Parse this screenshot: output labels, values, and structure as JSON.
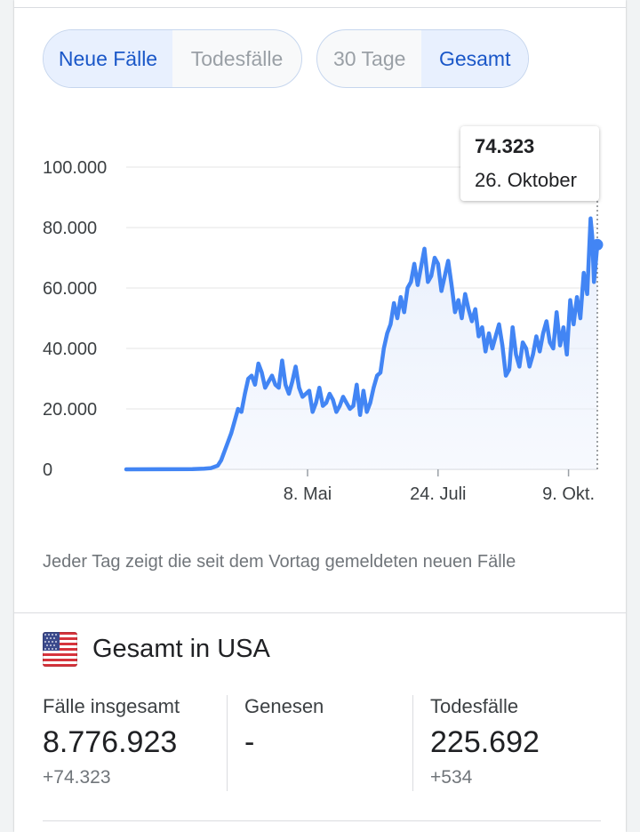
{
  "toggles": {
    "type": [
      {
        "label": "Neue Fälle",
        "active": true
      },
      {
        "label": "Todesfälle",
        "active": false
      }
    ],
    "range": [
      {
        "label": "30 Tage",
        "active": false
      },
      {
        "label": "Gesamt",
        "active": true
      }
    ]
  },
  "tooltip": {
    "value": "74.323",
    "date": "26. Oktober"
  },
  "chart_data": {
    "type": "area",
    "title": "",
    "xlabel": "",
    "ylabel": "",
    "ylim": [
      0,
      100000
    ],
    "y_ticks": [
      {
        "value": 0,
        "label": "0"
      },
      {
        "value": 20000,
        "label": "20.000"
      },
      {
        "value": 40000,
        "label": "40.000"
      },
      {
        "value": 60000,
        "label": "60.000"
      },
      {
        "value": 80000,
        "label": "80.000"
      },
      {
        "value": 100000,
        "label": "100.000"
      }
    ],
    "x_ticks": [
      {
        "date": "2020-05-08",
        "label": "8. Mai"
      },
      {
        "date": "2020-07-24",
        "label": "24. Juli"
      },
      {
        "date": "2020-10-09",
        "label": "9. Okt."
      }
    ],
    "grid": true,
    "legend": "none",
    "line_color": "#4285f4",
    "fill_color": "#e8effc",
    "highlight": {
      "date": "2020-10-26",
      "value": 74323
    },
    "series": [
      {
        "x": [
          "2020-01-22",
          "2020-03-01",
          "2020-03-08",
          "2020-03-12",
          "2020-03-16",
          "2020-03-18",
          "2020-03-20",
          "2020-03-22",
          "2020-03-24",
          "2020-03-26",
          "2020-03-28",
          "2020-03-30",
          "2020-04-01",
          "2020-04-03",
          "2020-04-05",
          "2020-04-07",
          "2020-04-09",
          "2020-04-11",
          "2020-04-13",
          "2020-04-15",
          "2020-04-17",
          "2020-04-19",
          "2020-04-21",
          "2020-04-23",
          "2020-04-25",
          "2020-04-27",
          "2020-04-29",
          "2020-05-01",
          "2020-05-03",
          "2020-05-05",
          "2020-05-07",
          "2020-05-09",
          "2020-05-11",
          "2020-05-13",
          "2020-05-15",
          "2020-05-17",
          "2020-05-19",
          "2020-05-21",
          "2020-05-23",
          "2020-05-25",
          "2020-05-27",
          "2020-05-29",
          "2020-05-31",
          "2020-06-02",
          "2020-06-04",
          "2020-06-06",
          "2020-06-08",
          "2020-06-10",
          "2020-06-12",
          "2020-06-14",
          "2020-06-16",
          "2020-06-18",
          "2020-06-20",
          "2020-06-22",
          "2020-06-24",
          "2020-06-26",
          "2020-06-28",
          "2020-06-30",
          "2020-07-02",
          "2020-07-04",
          "2020-07-06",
          "2020-07-08",
          "2020-07-10",
          "2020-07-12",
          "2020-07-14",
          "2020-07-16",
          "2020-07-18",
          "2020-07-20",
          "2020-07-22",
          "2020-07-24",
          "2020-07-26",
          "2020-07-28",
          "2020-07-30",
          "2020-08-01",
          "2020-08-03",
          "2020-08-05",
          "2020-08-07",
          "2020-08-09",
          "2020-08-11",
          "2020-08-13",
          "2020-08-15",
          "2020-08-17",
          "2020-08-19",
          "2020-08-21",
          "2020-08-23",
          "2020-08-25",
          "2020-08-27",
          "2020-08-29",
          "2020-08-31",
          "2020-09-02",
          "2020-09-04",
          "2020-09-06",
          "2020-09-08",
          "2020-09-10",
          "2020-09-12",
          "2020-09-14",
          "2020-09-16",
          "2020-09-18",
          "2020-09-20",
          "2020-09-22",
          "2020-09-24",
          "2020-09-26",
          "2020-09-28",
          "2020-09-30",
          "2020-10-02",
          "2020-10-04",
          "2020-10-06",
          "2020-10-08",
          "2020-10-10",
          "2020-10-12",
          "2020-10-14",
          "2020-10-16",
          "2020-10-18",
          "2020-10-20",
          "2020-10-22",
          "2020-10-23",
          "2020-10-24",
          "2020-10-25",
          "2020-10-26"
        ],
        "y": [
          0,
          50,
          200,
          400,
          1200,
          3000,
          6000,
          9000,
          12000,
          16000,
          20000,
          19000,
          25000,
          30000,
          31000,
          28000,
          35000,
          32000,
          27000,
          29000,
          31000,
          28000,
          27000,
          36000,
          28000,
          25000,
          29000,
          34000,
          27000,
          24000,
          25000,
          26000,
          19000,
          22000,
          27000,
          21000,
          22000,
          25000,
          23000,
          19000,
          21000,
          24000,
          22000,
          20000,
          21000,
          28000,
          18000,
          26000,
          19000,
          22000,
          27000,
          31000,
          32000,
          40000,
          45000,
          48000,
          55000,
          50000,
          57000,
          52000,
          60000,
          62000,
          68000,
          61000,
          67000,
          73000,
          62000,
          64000,
          70000,
          68000,
          59000,
          64000,
          69000,
          61000,
          52000,
          56000,
          50000,
          58000,
          53000,
          49000,
          53000,
          44000,
          47000,
          39000,
          45000,
          40000,
          44000,
          48000,
          41000,
          31000,
          33000,
          47000,
          38000,
          34000,
          42000,
          40000,
          34000,
          38000,
          44000,
          39000,
          45000,
          49000,
          42000,
          40000,
          52000,
          41000,
          47000,
          38000,
          56000,
          48000,
          57000,
          50000,
          65000,
          58000,
          83000,
          77000,
          62000,
          68000,
          74323
        ]
      }
    ]
  },
  "note": "Jeder Tag zeigt die seit dem Vortag gemeldeten neuen Fälle",
  "region": {
    "flag": "us-flag-icon",
    "title": "Gesamt in USA"
  },
  "stats": {
    "cases": {
      "label": "Fälle insgesamt",
      "value": "8.776.923",
      "delta": "+74.323"
    },
    "recovered": {
      "label": "Genesen",
      "value": "-",
      "delta": ""
    },
    "deaths": {
      "label": "Todesfälle",
      "value": "225.692",
      "delta": "+534"
    }
  }
}
